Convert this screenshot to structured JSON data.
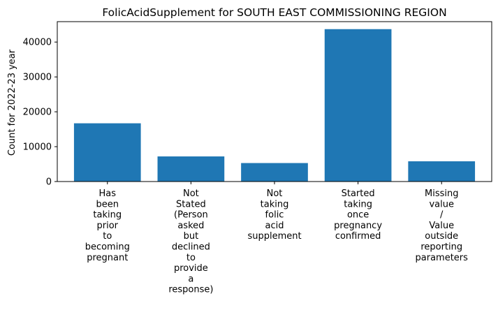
{
  "chart_data": {
    "type": "bar",
    "title": "FolicAcidSupplement for SOUTH EAST COMMISSIONING REGION",
    "xlabel": "",
    "ylabel": "Count for 2022-23 year",
    "categories": [
      "Has been taking prior to becoming pregnant",
      "Not Stated (Person asked but declined to provide a response)",
      "Not taking folic acid supplement",
      "Started taking once pregnancy confirmed",
      "Missing value / Value outside reporting parameters"
    ],
    "category_label_lines": [
      [
        "Has",
        "been",
        "taking",
        "prior",
        "to",
        "becoming",
        "pregnant"
      ],
      [
        "Not",
        "Stated",
        "(Person",
        "asked",
        "but",
        "declined",
        "to",
        "provide",
        "a",
        "response)"
      ],
      [
        "Not",
        "taking",
        "folic",
        "acid",
        "supplement"
      ],
      [
        "Started",
        "taking",
        "once",
        "pregnancy",
        "confirmed"
      ],
      [
        "Missing",
        "value",
        "/",
        "Value",
        "outside",
        "reporting",
        "parameters"
      ]
    ],
    "values": [
      16700,
      7200,
      5300,
      43700,
      5800
    ],
    "ylim": [
      0,
      45850
    ],
    "yticks": [
      0,
      10000,
      20000,
      30000,
      40000
    ],
    "ytick_labels": [
      "0",
      "10000",
      "20000",
      "30000",
      "40000"
    ],
    "bar_color": "#1f77b4",
    "grid": false,
    "legend": "none"
  }
}
